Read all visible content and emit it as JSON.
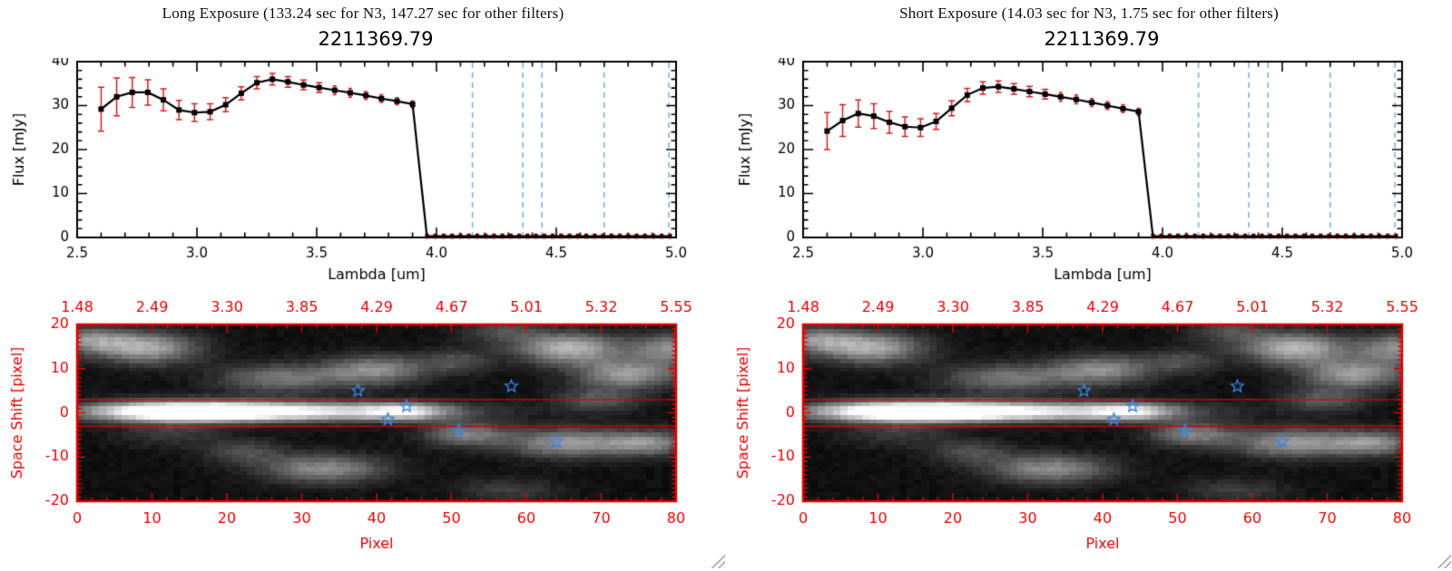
{
  "panels": [
    {
      "id": "long",
      "header": "Long Exposure (133.24 sec for N3, 147.27 sec for other filters)",
      "plot_title": "2211369.79"
    },
    {
      "id": "short",
      "header": "Short Exposure (14.03 sec for N3, 1.75 sec for other filters)",
      "plot_title": "2211369.79"
    }
  ],
  "chart_data": [
    {
      "id": "flux-long",
      "type": "line",
      "title": "2211369.79",
      "xlabel": "Lambda [um]",
      "ylabel": "Flux [mJy]",
      "xlim": [
        2.5,
        5.0
      ],
      "ylim": [
        0,
        40
      ],
      "xticks": [
        2.5,
        3.0,
        3.5,
        4.0,
        4.5,
        5.0
      ],
      "yticks": [
        0,
        10,
        20,
        30,
        40
      ],
      "x": [
        2.6,
        2.665,
        2.73,
        2.795,
        2.86,
        2.925,
        2.99,
        3.055,
        3.12,
        3.185,
        3.25,
        3.315,
        3.38,
        3.445,
        3.51,
        3.575,
        3.64,
        3.705,
        3.77,
        3.835,
        3.9
      ],
      "y": [
        29.2,
        32.0,
        33.0,
        33.0,
        31.3,
        29.0,
        28.4,
        28.6,
        30.2,
        32.8,
        35.2,
        36.0,
        35.4,
        34.7,
        34.1,
        33.5,
        32.9,
        32.3,
        31.6,
        31.0,
        30.3
      ],
      "yerr": [
        5.0,
        4.3,
        3.4,
        2.9,
        2.5,
        2.2,
        2.0,
        1.8,
        1.6,
        1.5,
        1.4,
        1.3,
        1.2,
        1.1,
        1.1,
        1.0,
        1.0,
        0.9,
        0.9,
        0.8,
        0.8
      ],
      "zero_region": {
        "x_start": 3.96,
        "x_end": 4.99,
        "step": 0.035,
        "y": 0.3,
        "yerr": 0.45
      },
      "vlines": [
        4.15,
        4.36,
        4.44,
        4.7,
        4.97
      ],
      "colors": {
        "line": "#000000",
        "error": "#d42020",
        "vline": "#7eb2de"
      }
    },
    {
      "id": "flux-short",
      "type": "line",
      "title": "2211369.79",
      "xlabel": "Lambda [um]",
      "ylabel": "Flux [mJy]",
      "xlim": [
        2.5,
        5.0
      ],
      "ylim": [
        0,
        40
      ],
      "xticks": [
        2.5,
        3.0,
        3.5,
        4.0,
        4.5,
        5.0
      ],
      "yticks": [
        0,
        10,
        20,
        30,
        40
      ],
      "x": [
        2.6,
        2.665,
        2.73,
        2.795,
        2.86,
        2.925,
        2.99,
        3.055,
        3.12,
        3.185,
        3.25,
        3.315,
        3.38,
        3.445,
        3.51,
        3.575,
        3.64,
        3.705,
        3.77,
        3.835,
        3.9
      ],
      "y": [
        24.2,
        26.6,
        28.2,
        27.6,
        26.2,
        25.2,
        25.0,
        26.4,
        29.4,
        32.4,
        34.0,
        34.3,
        33.8,
        33.2,
        32.6,
        32.0,
        31.4,
        30.7,
        30.0,
        29.3,
        28.6
      ],
      "yerr": [
        4.2,
        3.6,
        3.1,
        2.8,
        2.5,
        2.2,
        2.0,
        1.8,
        1.7,
        1.5,
        1.4,
        1.3,
        1.2,
        1.2,
        1.1,
        1.0,
        1.0,
        0.9,
        0.9,
        0.9,
        0.8
      ],
      "zero_region": {
        "x_start": 3.96,
        "x_end": 4.99,
        "step": 0.035,
        "y": 0.3,
        "yerr": 0.45
      },
      "vlines": [
        4.15,
        4.36,
        4.44,
        4.7,
        4.97
      ],
      "colors": {
        "line": "#000000",
        "error": "#d42020",
        "vline": "#7eb2de"
      }
    },
    {
      "id": "map-long",
      "type": "heatmap",
      "xlabel": "Pixel",
      "ylabel": "Space Shift [pixel]",
      "top_labels": [
        "1.48",
        "2.49",
        "3.30",
        "3.85",
        "4.29",
        "4.67",
        "5.01",
        "5.32",
        "5.55"
      ],
      "xlim": [
        0,
        80
      ],
      "ylim": [
        -20,
        20
      ],
      "xticks": [
        0,
        10,
        20,
        30,
        40,
        50,
        60,
        70,
        80
      ],
      "yticks": [
        -20,
        -10,
        0,
        10,
        20
      ],
      "aperture_lines": [
        3,
        -3
      ],
      "stars": [
        [
          37.5,
          5
        ],
        [
          44,
          1.5
        ],
        [
          41.5,
          -1.5
        ],
        [
          51,
          -4
        ],
        [
          58,
          6
        ],
        [
          64,
          -6.5
        ]
      ],
      "blobs": [
        [
          13,
          0.3,
          9,
          1.7,
          1.0
        ],
        [
          30,
          0.3,
          14,
          1.6,
          0.8
        ],
        [
          44,
          0.3,
          4,
          1.5,
          0.45
        ],
        [
          9,
          15,
          5,
          2.6,
          0.6
        ],
        [
          1,
          17,
          4,
          2.2,
          0.45
        ],
        [
          27,
          8,
          6,
          2.4,
          0.42
        ],
        [
          40,
          10,
          5,
          2.4,
          0.5
        ],
        [
          51,
          12,
          3.5,
          2,
          0.25
        ],
        [
          57,
          19,
          4,
          2,
          0.25
        ],
        [
          66,
          15,
          5,
          2.6,
          0.65
        ],
        [
          74,
          9,
          5,
          2.4,
          0.55
        ],
        [
          80,
          15,
          4,
          2.4,
          0.5
        ],
        [
          70,
          3,
          4,
          2,
          0.3
        ],
        [
          33,
          -13,
          6,
          2.4,
          0.5
        ],
        [
          22,
          -9,
          4,
          2,
          0.25
        ],
        [
          52,
          -5,
          4,
          2,
          0.45
        ],
        [
          66,
          -7,
          6,
          2.4,
          0.55
        ],
        [
          77,
          -7,
          4,
          2,
          0.45
        ],
        [
          12,
          -5,
          5,
          2,
          0.18
        ],
        [
          58,
          -18,
          5,
          2,
          0.2
        ]
      ],
      "colors": {
        "axis": "#e00000",
        "star": "#3b82e8",
        "aperture": "#e00000"
      }
    },
    {
      "id": "map-short",
      "type": "heatmap",
      "xlabel": "Pixel",
      "ylabel": "Space Shift [pixel]",
      "top_labels": [
        "1.48",
        "2.49",
        "3.30",
        "3.85",
        "4.29",
        "4.67",
        "5.01",
        "5.32",
        "5.55"
      ],
      "xlim": [
        0,
        80
      ],
      "ylim": [
        -20,
        20
      ],
      "xticks": [
        0,
        10,
        20,
        30,
        40,
        50,
        60,
        70,
        80
      ],
      "yticks": [
        -20,
        -10,
        0,
        10,
        20
      ],
      "aperture_lines": [
        3,
        -3
      ],
      "stars": [
        [
          37.5,
          5
        ],
        [
          44,
          1.5
        ],
        [
          41.5,
          -1.5
        ],
        [
          51,
          -4
        ],
        [
          58,
          6
        ],
        [
          64,
          -6.5
        ]
      ],
      "blobs": [
        [
          13,
          0.3,
          9,
          1.7,
          1.0
        ],
        [
          30,
          0.3,
          14,
          1.6,
          0.8
        ],
        [
          44,
          0.3,
          4,
          1.5,
          0.45
        ],
        [
          9,
          15,
          5,
          2.6,
          0.6
        ],
        [
          1,
          17,
          4,
          2.2,
          0.45
        ],
        [
          27,
          8,
          6,
          2.4,
          0.42
        ],
        [
          40,
          10,
          5,
          2.4,
          0.5
        ],
        [
          51,
          12,
          3.5,
          2,
          0.25
        ],
        [
          57,
          19,
          4,
          2,
          0.25
        ],
        [
          66,
          15,
          5,
          2.6,
          0.65
        ],
        [
          74,
          9,
          5,
          2.4,
          0.55
        ],
        [
          80,
          15,
          4,
          2.4,
          0.5
        ],
        [
          70,
          3,
          4,
          2,
          0.3
        ],
        [
          33,
          -13,
          6,
          2.4,
          0.5
        ],
        [
          22,
          -9,
          4,
          2,
          0.25
        ],
        [
          52,
          -5,
          4,
          2,
          0.45
        ],
        [
          66,
          -7,
          6,
          2.4,
          0.55
        ],
        [
          77,
          -7,
          4,
          2,
          0.45
        ],
        [
          12,
          -5,
          5,
          2,
          0.18
        ],
        [
          58,
          -18,
          5,
          2,
          0.2
        ]
      ],
      "colors": {
        "axis": "#e00000",
        "star": "#3b82e8",
        "aperture": "#e00000"
      }
    }
  ]
}
